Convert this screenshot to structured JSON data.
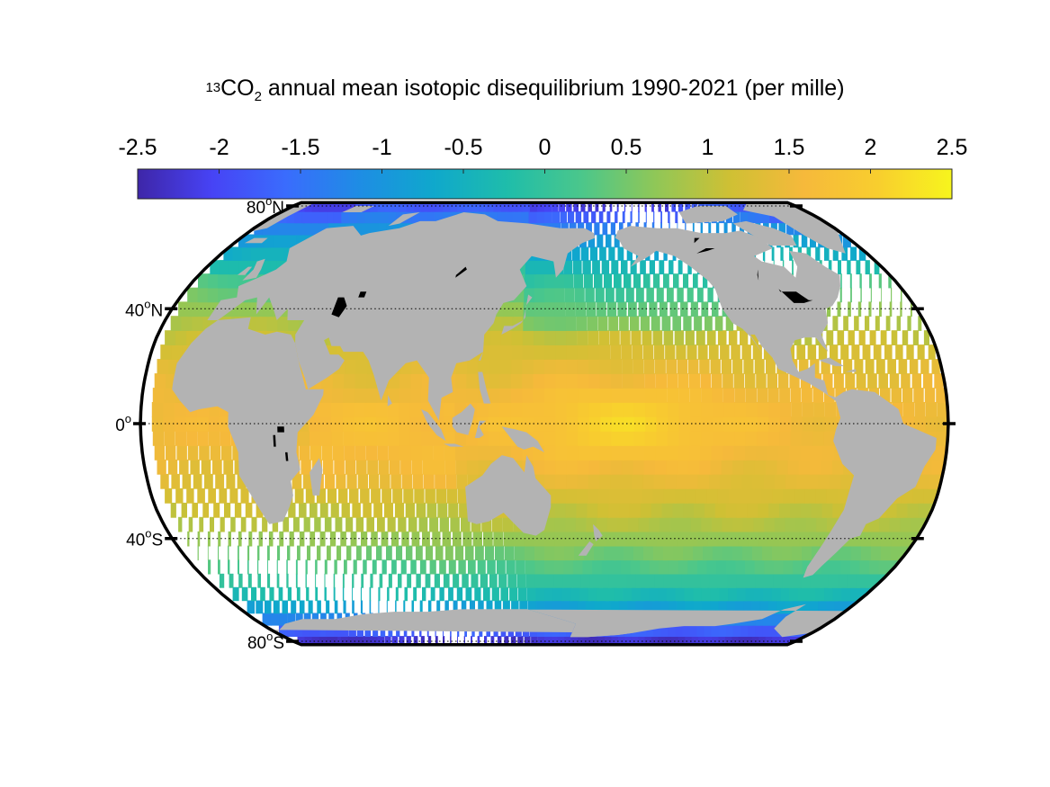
{
  "title": {
    "superscript": "13",
    "species": "CO",
    "subscript": "2",
    "rest": " annual mean isotopic disequilibrium 1990-2021 (per mille)"
  },
  "colorbar": {
    "min": -2.5,
    "max": 2.5,
    "ticks": [
      "-2.5",
      "-2",
      "-1.5",
      "-1",
      "-0.5",
      "0",
      "0.5",
      "1",
      "1.5",
      "2",
      "2.5"
    ],
    "colors": [
      "#3e26a8",
      "#4743f5",
      "#3a6cfd",
      "#1e8de4",
      "#0fa8cc",
      "#1fbdaa",
      "#4bc78b",
      "#90c757",
      "#cfc034",
      "#f6b93b",
      "#f8ce2e",
      "#f7f51d"
    ]
  },
  "map": {
    "projection": "Robinson",
    "latitude_labels": [
      {
        "deg": "80",
        "hemi": "N",
        "lat": 80
      },
      {
        "deg": "40",
        "hemi": "N",
        "lat": 40
      },
      {
        "deg": "0",
        "hemi": "",
        "lat": 0
      },
      {
        "deg": "40",
        "hemi": "S",
        "lat": -40
      },
      {
        "deg": "80",
        "hemi": "S",
        "lat": -80
      }
    ],
    "grid": "dotted latitude lines",
    "land_color": "#b3b3b3",
    "lake_color": "#000000",
    "ocean_pattern": "low values near poles, highest values in tropics, peak in central equatorial Pacific"
  }
}
